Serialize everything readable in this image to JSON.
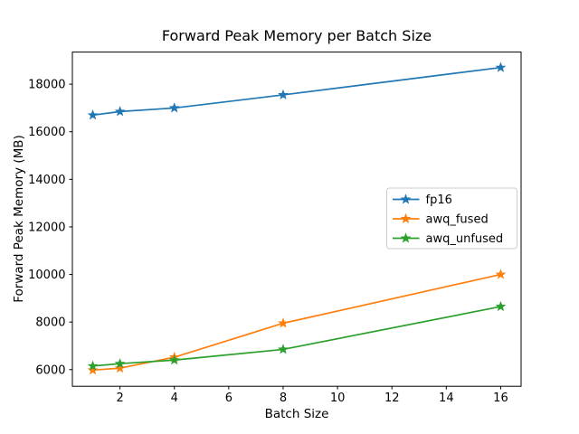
{
  "chart_data": {
    "type": "line",
    "title": "Forward Peak Memory per Batch Size",
    "xlabel": "Batch Size",
    "ylabel": "Forward Peak Memory (MB)",
    "x": [
      1,
      2,
      4,
      8,
      16
    ],
    "series": [
      {
        "name": "fp16",
        "color": "#1f77b4",
        "marker": "star",
        "values": [
          16700,
          16850,
          17000,
          17550,
          18700
        ]
      },
      {
        "name": "awq_fused",
        "color": "#ff7f0e",
        "marker": "star",
        "values": [
          5980,
          6060,
          6520,
          7950,
          10000
        ]
      },
      {
        "name": "awq_unfused",
        "color": "#2ca02c",
        "marker": "star",
        "values": [
          6150,
          6250,
          6400,
          6850,
          8650
        ]
      }
    ],
    "xticks": [
      2,
      4,
      6,
      8,
      10,
      12,
      14,
      16
    ],
    "yticks": [
      6000,
      8000,
      10000,
      12000,
      14000,
      16000,
      18000
    ],
    "xlim": [
      0.25,
      16.75
    ],
    "ylim": [
      5300,
      19350
    ],
    "grid": false,
    "legend_position": "center right",
    "background_color": "#ffffff",
    "axes_color": "#000000",
    "legend_border_color": "#cccccc"
  }
}
